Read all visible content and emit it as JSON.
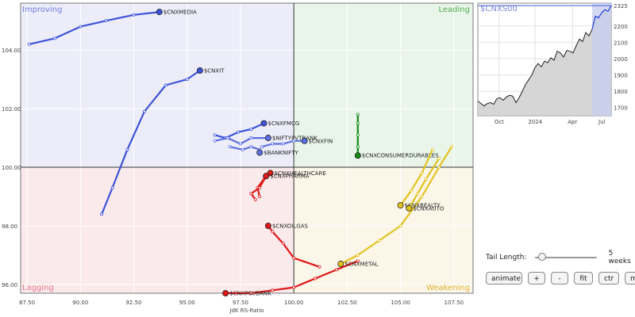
{
  "rrg": {
    "quadrants": {
      "improving": "Improving",
      "leading": "Leading",
      "lagging": "Lagging",
      "weakening": "Weakening"
    },
    "colors": {
      "improving": "#6f7fe0",
      "leading": "#4fae4f",
      "lagging": "#e57a8a",
      "weakening": "#e0b232"
    },
    "xlabel": "JdK RS-Ratio",
    "x_ticks": [
      "87.50",
      "90.00",
      "92.50",
      "95.00",
      "97.50",
      "100.00",
      "102.50",
      "105.00",
      "107.50"
    ],
    "y_ticks": [
      "104.00",
      "102.00",
      "100.00",
      "98.00",
      "96.00"
    ]
  },
  "chart_data": {
    "type": "scatter",
    "xlabel": "JdK RS-Ratio",
    "ylabel": "",
    "xlim": [
      87.2,
      108.4
    ],
    "ylim": [
      95.7,
      105.6
    ],
    "grid": true,
    "series": [
      {
        "name": "$CNXMEDIA",
        "color": "#3d53d8",
        "tail": [
          [
            87.6,
            104.2
          ],
          [
            88.8,
            104.4
          ],
          [
            90.0,
            104.8
          ],
          [
            91.2,
            105.0
          ],
          [
            92.5,
            105.2
          ],
          [
            93.7,
            105.3
          ]
        ],
        "head": [
          93.7,
          105.3
        ]
      },
      {
        "name": "$CNXIT",
        "color": "#3d53d8",
        "tail": [
          [
            91.0,
            98.4
          ],
          [
            91.5,
            99.3
          ],
          [
            92.2,
            100.6
          ],
          [
            93.0,
            101.9
          ],
          [
            94.0,
            102.8
          ],
          [
            95.0,
            103.0
          ],
          [
            95.6,
            103.3
          ]
        ],
        "head": [
          95.6,
          103.3
        ]
      },
      {
        "name": "$CNXFMCG",
        "color": "#3d53d8",
        "tail": [
          [
            96.3,
            101.1
          ],
          [
            96.8,
            101.0
          ],
          [
            97.4,
            101.2
          ],
          [
            98.0,
            101.3
          ],
          [
            98.6,
            101.5
          ]
        ],
        "head": [
          98.6,
          101.5
        ]
      },
      {
        "name": "$NIFTYPVTBANK",
        "color": "#5b6fe0",
        "tail": [
          [
            96.3,
            100.9
          ],
          [
            96.9,
            101.0
          ],
          [
            97.5,
            100.8
          ],
          [
            98.0,
            101.0
          ],
          [
            98.8,
            101.0
          ]
        ],
        "head": [
          98.8,
          101.0
        ]
      },
      {
        "name": "$CNXFIN",
        "color": "#5b6fe0",
        "tail": [
          [
            98.5,
            100.7
          ],
          [
            99.0,
            100.8
          ],
          [
            99.5,
            100.8
          ],
          [
            100.0,
            100.9
          ],
          [
            100.5,
            100.9
          ]
        ],
        "head": [
          100.5,
          100.9
        ]
      },
      {
        "name": "$BANKNIFTY",
        "color": "#5b6fe0",
        "tail": [
          [
            97.0,
            100.7
          ],
          [
            97.6,
            100.6
          ],
          [
            98.0,
            100.7
          ],
          [
            98.4,
            100.6
          ],
          [
            98.4,
            100.5
          ]
        ],
        "head": [
          98.4,
          100.5
        ]
      },
      {
        "name": "$CNXCONSUMERDURABLES",
        "color": "#158a15",
        "tail": [
          [
            103.0,
            101.8
          ],
          [
            103.0,
            101.5
          ],
          [
            103.0,
            101.1
          ],
          [
            103.0,
            100.7
          ],
          [
            103.0,
            100.4
          ]
        ],
        "head": [
          103.0,
          100.4
        ]
      },
      {
        "name": "$CNXHEALTHCARE",
        "color": "#e01818",
        "tail": [
          [
            98.4,
            99.0
          ],
          [
            98.3,
            99.3
          ],
          [
            98.6,
            99.6
          ],
          [
            98.9,
            99.8
          ]
        ],
        "head": [
          98.9,
          99.8
        ]
      },
      {
        "name": "$CNXPHARMA",
        "color": "#e01818",
        "tail": [
          [
            98.2,
            98.9
          ],
          [
            98.0,
            99.1
          ],
          [
            98.4,
            99.3
          ],
          [
            98.7,
            99.7
          ]
        ],
        "head": [
          98.7,
          99.7
        ]
      },
      {
        "name": "$CNXOILGAS",
        "color": "#e01818",
        "tail": [
          [
            101.2,
            96.6
          ],
          [
            100.0,
            96.9
          ],
          [
            99.5,
            97.4
          ],
          [
            99.0,
            97.8
          ],
          [
            98.8,
            98.0
          ]
        ],
        "head": [
          98.8,
          98.0
        ]
      },
      {
        "name": "$CNXPSUBANK",
        "color": "#e01818",
        "tail": [
          [
            103.0,
            96.8
          ],
          [
            102.0,
            96.5
          ],
          [
            101.0,
            96.2
          ],
          [
            100.0,
            95.9
          ],
          [
            99.0,
            95.8
          ],
          [
            98.0,
            95.7
          ],
          [
            96.8,
            95.7
          ]
        ],
        "head": [
          96.8,
          95.7
        ]
      },
      {
        "name": "$CNXMETAL",
        "color": "#e3c21e",
        "tail": [
          [
            107.4,
            100.7
          ],
          [
            106.8,
            100.0
          ],
          [
            106.0,
            99.0
          ],
          [
            105.0,
            98.0
          ],
          [
            104.0,
            97.5
          ],
          [
            103.0,
            97.0
          ],
          [
            102.2,
            96.7
          ]
        ],
        "head": [
          102.2,
          96.7
        ]
      },
      {
        "name": "$CNXREALTY",
        "color": "#e3c21e",
        "tail": [
          [
            106.5,
            100.6
          ],
          [
            106.0,
            99.8
          ],
          [
            105.5,
            99.2
          ],
          [
            105.0,
            98.7
          ]
        ],
        "head": [
          105.0,
          98.7
        ]
      },
      {
        "name": "$CNXAUTO",
        "color": "#e3c21e",
        "tail": [
          [
            106.8,
            100.3
          ],
          [
            106.2,
            99.6
          ],
          [
            105.8,
            99.1
          ],
          [
            105.4,
            98.6
          ]
        ],
        "head": [
          105.4,
          98.6
        ]
      }
    ]
  },
  "mini_chart": {
    "title": "$CNXS00",
    "x_ticks": [
      "Oct",
      "2024",
      "Apr",
      "Jul"
    ],
    "y_ticks": [
      "2325",
      "2200",
      "2100",
      "2000",
      "1900",
      "1800",
      "1700"
    ],
    "ylim": [
      1650,
      2340
    ],
    "values": [
      1740,
      1725,
      1710,
      1725,
      1730,
      1720,
      1755,
      1760,
      1745,
      1765,
      1775,
      1770,
      1730,
      1760,
      1800,
      1840,
      1870,
      1900,
      1945,
      1970,
      1950,
      1985,
      1975,
      2005,
      1990,
      2045,
      2035,
      2010,
      2050,
      2045,
      2035,
      2080,
      2120,
      2105,
      2160,
      2140,
      2180,
      2260,
      2250,
      2280,
      2300,
      2290,
      2325
    ],
    "highlight_start": 0.88,
    "line_color": "#222222",
    "recent_color": "#2a4bd8",
    "fill_color": "#cfcfcf"
  },
  "controls": {
    "tail_label": "Tail Length:",
    "tail_value": "5 weeks",
    "tail_fraction": 0.03,
    "buttons": [
      "animate",
      "+",
      "-",
      "fit",
      "ctr",
      "max"
    ]
  }
}
